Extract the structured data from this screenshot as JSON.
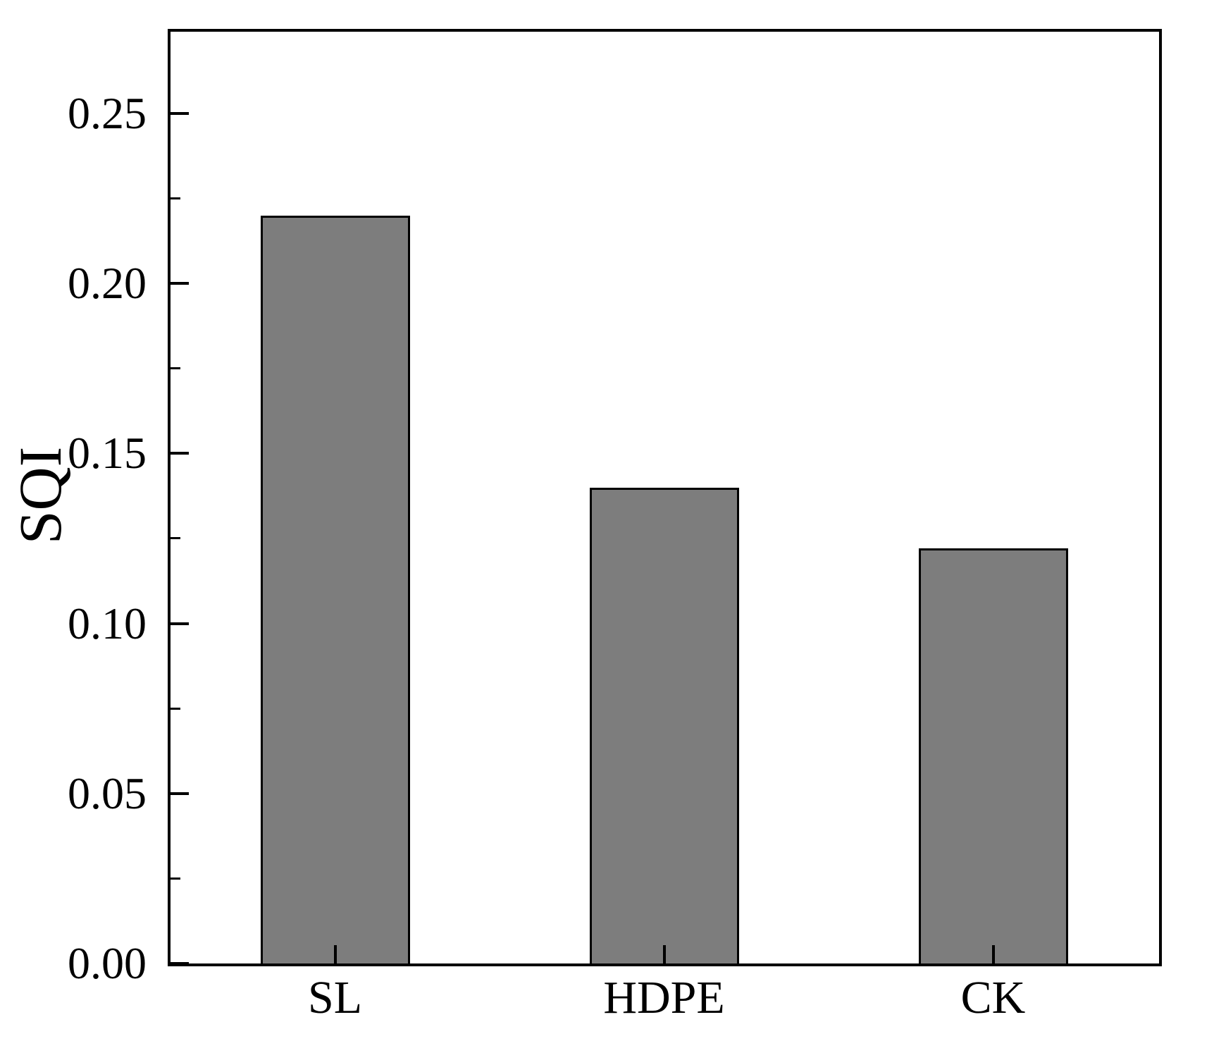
{
  "chart_data": {
    "type": "bar",
    "title": "",
    "xlabel": "",
    "ylabel": "SQI",
    "categories": [
      "SL",
      "HDPE",
      "CK"
    ],
    "values": [
      0.22,
      0.14,
      0.122
    ],
    "ylim": [
      0,
      0.274
    ],
    "yticks": [
      0,
      0.05,
      0.1,
      0.15,
      0.2,
      0.25
    ],
    "ytick_labels": [
      "0.00",
      "0.05",
      "0.10",
      "0.15",
      "0.20",
      "0.25"
    ],
    "minor_tick_step": 0.025,
    "grid": false,
    "legend": "none",
    "bar_color": "#7d7d7d",
    "bar_border_color": "#000000",
    "axis_color": "#000000",
    "background_color": "#ffffff",
    "tick_direction": "in"
  }
}
